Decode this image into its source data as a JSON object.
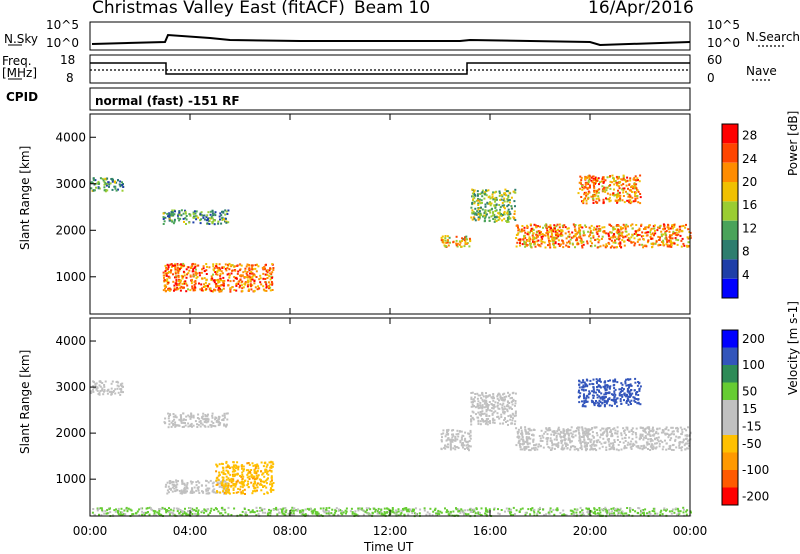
{
  "header": {
    "station": "Christmas Valley East (fitACF)",
    "beam": "Beam 10",
    "date": "16/Apr/2016"
  },
  "strips": {
    "nsky_label": "N.Sky",
    "nsky_ticks": [
      "10^5",
      "10^0"
    ],
    "nsearch_label": "N.Search",
    "nsearch_ticks": [
      "10^5",
      "10^0"
    ],
    "freq_label_1": "Freq.",
    "freq_label_2": "[MHz]",
    "freq_ticks": [
      "18",
      "8"
    ],
    "nave_label": "Nave",
    "nave_ticks": [
      "60",
      "0"
    ],
    "cpid_label": "CPID",
    "cpid_text": "normal (fast) -151 RF"
  },
  "colors": {
    "power_scale": [
      "#0000ff",
      "#1f3fa8",
      "#2e7d6e",
      "#4aa35a",
      "#9acd32",
      "#f0c000",
      "#ff8c00",
      "#ff4500",
      "#ff0000"
    ],
    "velocity_scale": [
      "#ff0000",
      "#ff5a00",
      "#ff9900",
      "#ffc000",
      "#c0c0c0",
      "#c0c0c0",
      "#66cc33",
      "#2e8b57",
      "#3355bb",
      "#0000ff"
    ]
  },
  "chart_data": [
    {
      "type": "heatmap",
      "name": "power",
      "ylabel": "Slant Range [km]",
      "yticks": [
        "4000",
        "3000",
        "2000",
        "1000"
      ],
      "ylim": [
        200,
        4500
      ],
      "xlim": [
        0,
        24
      ],
      "colorbar_label": "Power [dB]",
      "colorbar_ticks": [
        "28",
        "24",
        "20",
        "16",
        "12",
        "8",
        "4"
      ],
      "colorbar_range": [
        0,
        30
      ],
      "regions": [
        {
          "t0": 0.0,
          "t1": 1.3,
          "r0": 2850,
          "r1": 3150,
          "level": 0.35
        },
        {
          "t0": 2.9,
          "t1": 5.5,
          "r0": 2150,
          "r1": 2450,
          "level": 0.35
        },
        {
          "t0": 2.9,
          "t1": 7.3,
          "r0": 700,
          "r1": 1300,
          "level": 0.8
        },
        {
          "t0": 14.0,
          "t1": 15.2,
          "r0": 1650,
          "r1": 1900,
          "level": 0.65
        },
        {
          "t0": 15.2,
          "t1": 17.0,
          "r0": 2200,
          "r1": 2900,
          "level": 0.45
        },
        {
          "t0": 17.0,
          "t1": 24.0,
          "r0": 1650,
          "r1": 2150,
          "level": 0.75
        },
        {
          "t0": 19.5,
          "t1": 22.0,
          "r0": 2600,
          "r1": 3200,
          "level": 0.75
        }
      ]
    },
    {
      "type": "heatmap",
      "name": "velocity",
      "ylabel": "Slant Range [km]",
      "yticks": [
        "4000",
        "3000",
        "2000",
        "1000"
      ],
      "ylim": [
        200,
        4500
      ],
      "xlim": [
        0,
        24
      ],
      "colorbar_label": "Velocity [m s-1]",
      "colorbar_ticks": [
        "200",
        "100",
        "50",
        "15",
        "-15",
        "-50",
        "-100",
        "-200"
      ],
      "colorbar_range": [
        -250,
        250
      ],
      "regions": [
        {
          "t0": 0.0,
          "t1": 1.3,
          "r0": 2850,
          "r1": 3150,
          "velocity": 0
        },
        {
          "t0": 2.9,
          "t1": 5.5,
          "r0": 2150,
          "r1": 2450,
          "velocity": 0
        },
        {
          "t0": 2.9,
          "t1": 5.5,
          "r0": 700,
          "r1": 1000,
          "velocity": 0
        },
        {
          "t0": 5.0,
          "t1": 7.3,
          "r0": 700,
          "r1": 1400,
          "velocity": -40
        },
        {
          "t0": 14.0,
          "t1": 15.2,
          "r0": 1650,
          "r1": 2100,
          "velocity": 0
        },
        {
          "t0": 15.2,
          "t1": 17.0,
          "r0": 2200,
          "r1": 2900,
          "velocity": 0
        },
        {
          "t0": 17.0,
          "t1": 24.0,
          "r0": 1650,
          "r1": 2150,
          "velocity": 0
        },
        {
          "t0": 19.5,
          "t1": 22.0,
          "r0": 2600,
          "r1": 3200,
          "velocity": 180
        },
        {
          "t0": 0.0,
          "t1": 24.0,
          "r0": 220,
          "r1": 400,
          "velocity": 20
        }
      ]
    }
  ],
  "xaxis": {
    "label": "Time UT",
    "ticks": [
      "00:00",
      "04:00",
      "08:00",
      "12:00",
      "16:00",
      "20:00",
      "00:00"
    ]
  }
}
